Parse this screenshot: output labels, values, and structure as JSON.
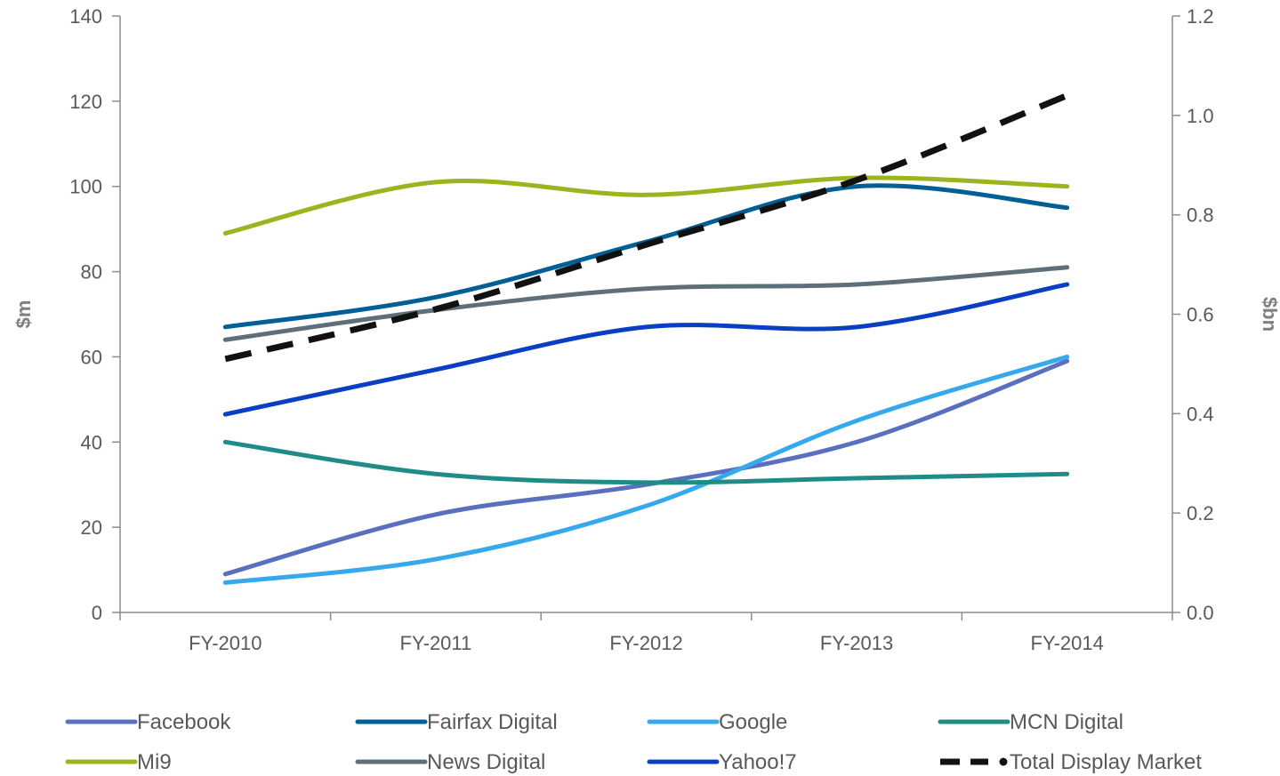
{
  "chart_data": {
    "type": "line",
    "categories": [
      "FY-2010",
      "FY-2011",
      "FY-2012",
      "FY-2013",
      "FY-2014"
    ],
    "y_left": {
      "label": "$m",
      "ylim": [
        0,
        140
      ],
      "ticks": [
        "0",
        "20",
        "40",
        "60",
        "80",
        "100",
        "120",
        "140"
      ]
    },
    "y_right": {
      "label": "$bn",
      "ylim": [
        0.0,
        1.2
      ],
      "ticks": [
        "0.0",
        "0.2",
        "0.4",
        "0.6",
        "0.8",
        "1.0",
        "1.2"
      ]
    },
    "grid": false,
    "legend_position": "bottom",
    "series": [
      {
        "name": "Facebook",
        "axis": "left",
        "color": "#5b6fbf",
        "dashed": false,
        "values": [
          9,
          23,
          30,
          40,
          59
        ]
      },
      {
        "name": "Fairfax Digital",
        "axis": "left",
        "color": "#005f94",
        "dashed": false,
        "values": [
          67,
          74,
          87,
          100,
          95
        ]
      },
      {
        "name": "Google",
        "axis": "left",
        "color": "#36a9ee",
        "dashed": false,
        "values": [
          7,
          12.5,
          25,
          45,
          60
        ]
      },
      {
        "name": "MCN Digital",
        "axis": "left",
        "color": "#1f8c87",
        "dashed": false,
        "values": [
          40,
          32.5,
          30.5,
          31.5,
          32.5
        ]
      },
      {
        "name": "Mi9",
        "axis": "left",
        "color": "#9ab51e",
        "dashed": false,
        "values": [
          89,
          101,
          98,
          102,
          100
        ]
      },
      {
        "name": "News Digital",
        "axis": "left",
        "color": "#5f6f79",
        "dashed": false,
        "values": [
          64,
          71,
          76,
          77,
          81
        ]
      },
      {
        "name": "Yahoo!7",
        "axis": "left",
        "color": "#0a3fc4",
        "dashed": false,
        "values": [
          46.5,
          57,
          67,
          67,
          77
        ]
      },
      {
        "name": "Total Display Market",
        "axis": "right",
        "color": "#111111",
        "dashed": true,
        "values": [
          0.51,
          0.61,
          0.74,
          0.87,
          1.04
        ]
      }
    ]
  }
}
